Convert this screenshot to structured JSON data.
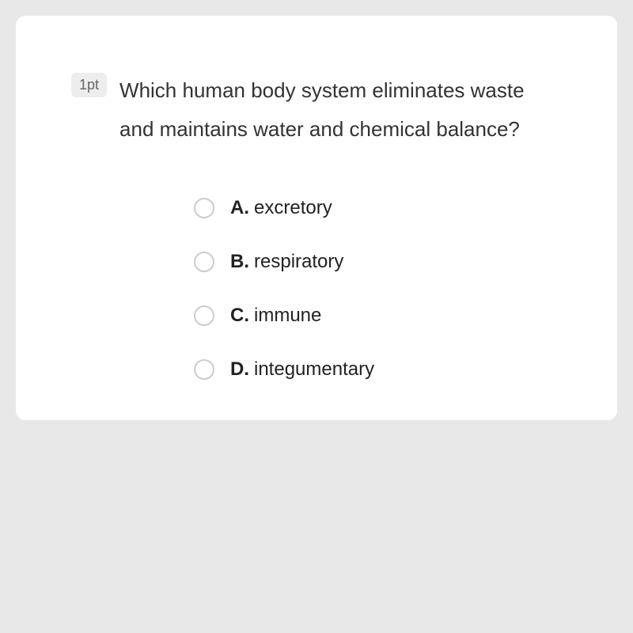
{
  "card": {
    "background_color": "#ffffff",
    "border_radius": 12
  },
  "page": {
    "background_color": "#e8e8e8"
  },
  "question": {
    "points_label": "1pt",
    "text": "Which human body system eliminates waste and maintains water and chemical balance?",
    "text_color": "#333333",
    "text_fontsize": 26,
    "badge_bg": "#ededed",
    "badge_color": "#666666"
  },
  "options": [
    {
      "letter": "A.",
      "text": "excretory"
    },
    {
      "letter": "B.",
      "text": "respiratory"
    },
    {
      "letter": "C.",
      "text": "immune"
    },
    {
      "letter": "D.",
      "text": "integumentary"
    }
  ],
  "radio": {
    "border_color": "#cccccc",
    "size": 26
  }
}
